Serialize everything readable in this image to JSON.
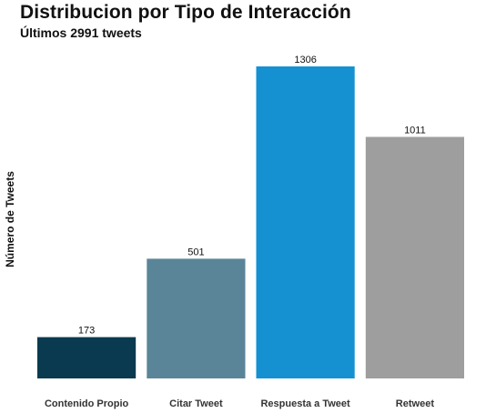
{
  "chart_data": {
    "type": "bar",
    "title": "Distribucion por Tipo de Interacción",
    "subtitle": "Últimos 2991 tweets",
    "xlabel": "",
    "ylabel": "Número de Tweets",
    "categories": [
      "Contenido Propio",
      "Citar Tweet",
      "Respuesta a Tweet",
      "Retweet"
    ],
    "values": [
      173,
      501,
      1306,
      1011
    ],
    "data_labels": [
      "173",
      "501",
      "1306",
      "1011"
    ],
    "colors": [
      "#0a3a4f",
      "#5a8599",
      "#1591d2",
      "#9e9e9e"
    ],
    "ylim": [
      0,
      1306
    ],
    "grid": false,
    "legend": "none"
  }
}
